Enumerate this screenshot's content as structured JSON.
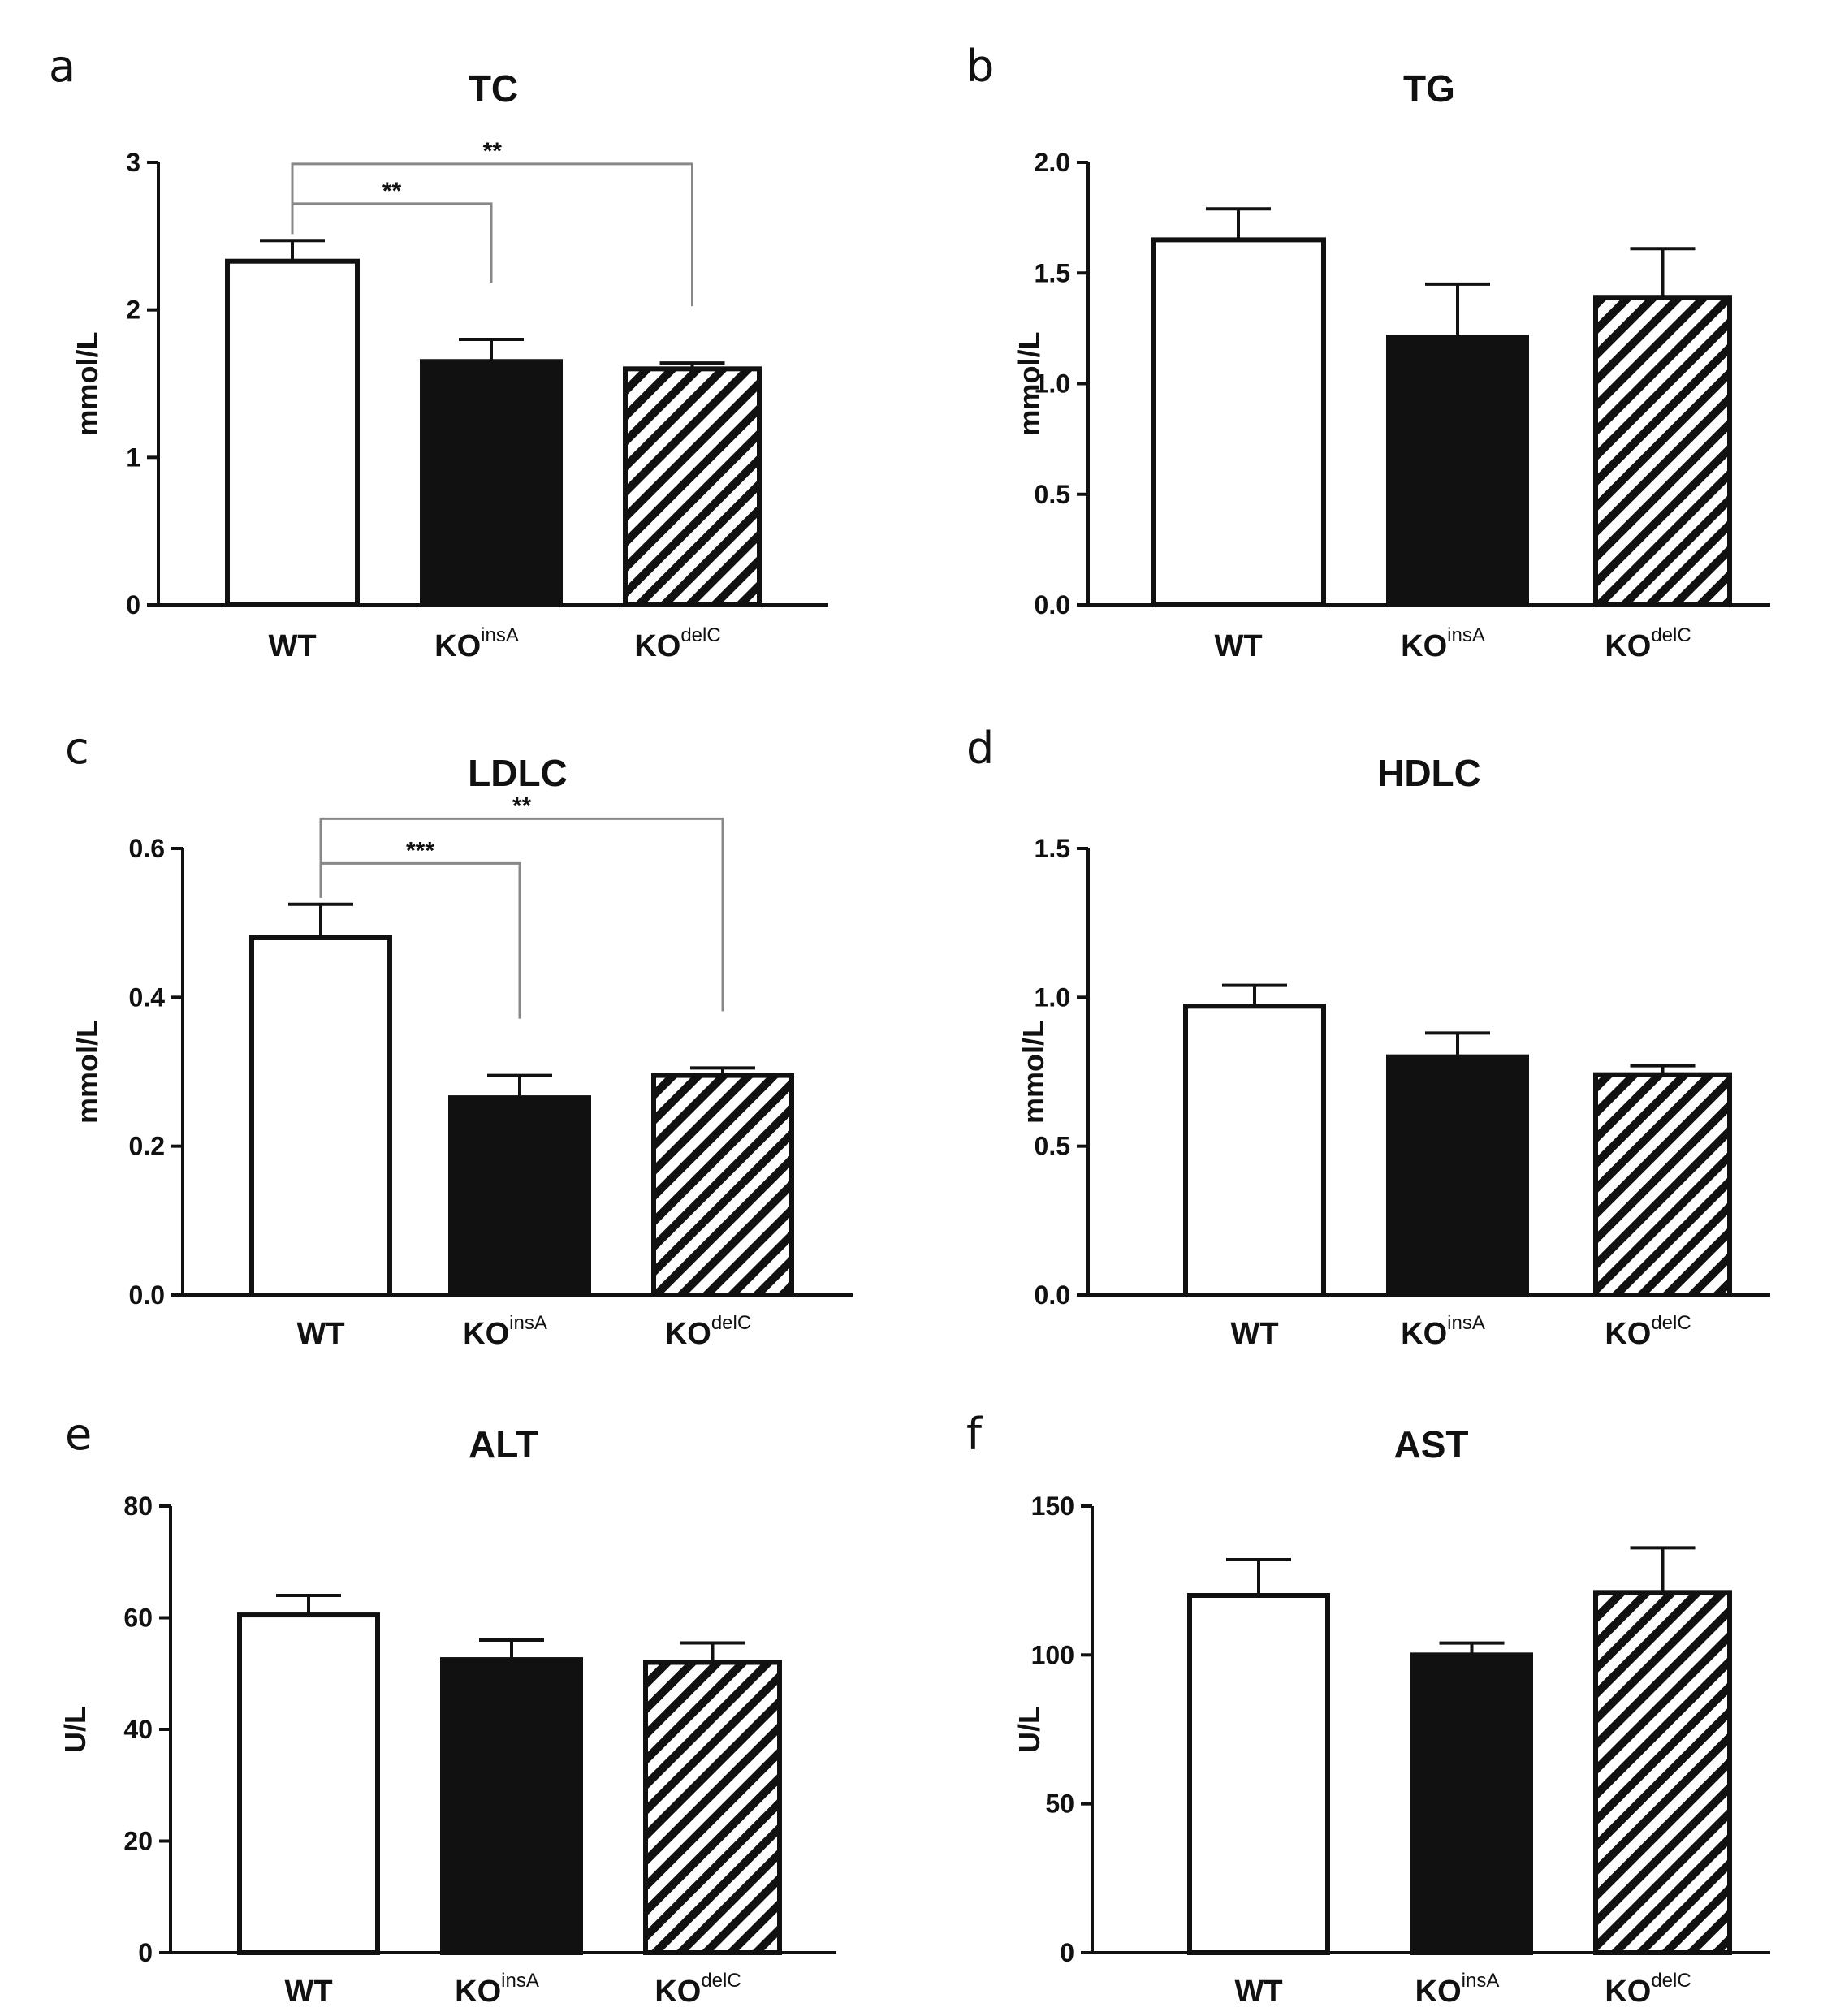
{
  "colors": {
    "ink": "#111111",
    "background": "#ffffff",
    "bracket": "#888888"
  },
  "chart_data": [
    {
      "panel": "a",
      "type": "bar",
      "title": "TC",
      "ylabel": "mmol/L",
      "ylim": [
        0,
        3
      ],
      "yticks": [
        "0",
        "1",
        "2",
        "3"
      ],
      "ytick_values": [
        0,
        1,
        2,
        3
      ],
      "categories": [
        {
          "base": "WT",
          "sup": ""
        },
        {
          "base": "KO",
          "sup": "insA"
        },
        {
          "base": "KO",
          "sup": "delC"
        }
      ],
      "fills": [
        "white",
        "black",
        "hatch"
      ],
      "values": [
        2.33,
        1.65,
        1.6
      ],
      "errors": [
        0.14,
        0.15,
        0.04
      ],
      "significance": [
        {
          "from": 0,
          "to": 1,
          "label": "**",
          "y": 2.72
        },
        {
          "from": 0,
          "to": 2,
          "label": "**",
          "y": 2.99
        }
      ]
    },
    {
      "panel": "b",
      "type": "bar",
      "title": "TG",
      "ylabel": "mmol/L",
      "ylim": [
        0,
        2
      ],
      "yticks": [
        "0.0",
        "0.5",
        "1.0",
        "1.5",
        "2.0"
      ],
      "ytick_values": [
        0,
        0.5,
        1,
        1.5,
        2
      ],
      "categories": [
        {
          "base": "WT",
          "sup": ""
        },
        {
          "base": "KO",
          "sup": "insA"
        },
        {
          "base": "KO",
          "sup": "delC"
        }
      ],
      "fills": [
        "white",
        "black",
        "hatch"
      ],
      "values": [
        1.65,
        1.21,
        1.39
      ],
      "errors": [
        0.14,
        0.24,
        0.22
      ],
      "significance": []
    },
    {
      "panel": "c",
      "type": "bar",
      "title": "LDLC",
      "ylabel": "mmol/L",
      "ylim": [
        0,
        0.6
      ],
      "yticks": [
        "0.0",
        "0.2",
        "0.4",
        "0.6"
      ],
      "ytick_values": [
        0,
        0.2,
        0.4,
        0.6
      ],
      "categories": [
        {
          "base": "WT",
          "sup": ""
        },
        {
          "base": "KO",
          "sup": "insA"
        },
        {
          "base": "KO",
          "sup": "delC"
        }
      ],
      "fills": [
        "white",
        "black",
        "hatch"
      ],
      "values": [
        0.48,
        0.265,
        0.295
      ],
      "errors": [
        0.045,
        0.03,
        0.01
      ],
      "significance": [
        {
          "from": 0,
          "to": 1,
          "label": "***",
          "y": 0.58
        },
        {
          "from": 0,
          "to": 2,
          "label": "**",
          "y": 0.64
        }
      ]
    },
    {
      "panel": "d",
      "type": "bar",
      "title": "HDLC",
      "ylabel": "mmol/L",
      "ylim": [
        0,
        1.5
      ],
      "yticks": [
        "0.0",
        "0.5",
        "1.0",
        "1.5"
      ],
      "ytick_values": [
        0,
        0.5,
        1,
        1.5
      ],
      "categories": [
        {
          "base": "WT",
          "sup": ""
        },
        {
          "base": "KO",
          "sup": "insA"
        },
        {
          "base": "KO",
          "sup": "delC"
        }
      ],
      "fills": [
        "white",
        "black",
        "hatch"
      ],
      "values": [
        0.97,
        0.8,
        0.74
      ],
      "errors": [
        0.07,
        0.08,
        0.03
      ],
      "significance": []
    },
    {
      "panel": "e",
      "type": "bar",
      "title": "ALT",
      "ylabel": "U/L",
      "ylim": [
        0,
        80
      ],
      "yticks": [
        "0",
        "20",
        "40",
        "60",
        "80"
      ],
      "ytick_values": [
        0,
        20,
        40,
        60,
        80
      ],
      "categories": [
        {
          "base": "WT",
          "sup": ""
        },
        {
          "base": "KO",
          "sup": "insA"
        },
        {
          "base": "KO",
          "sup": "delC"
        }
      ],
      "fills": [
        "white",
        "black",
        "hatch"
      ],
      "values": [
        60.5,
        52.5,
        52
      ],
      "errors": [
        3.5,
        3.5,
        3.5
      ],
      "significance": []
    },
    {
      "panel": "f",
      "type": "bar",
      "title": "AST",
      "ylabel": "U/L",
      "ylim": [
        0,
        150
      ],
      "yticks": [
        "0",
        "50",
        "100",
        "150"
      ],
      "ytick_values": [
        0,
        50,
        100,
        150
      ],
      "categories": [
        {
          "base": "WT",
          "sup": ""
        },
        {
          "base": "KO",
          "sup": "insA"
        },
        {
          "base": "KO",
          "sup": "delC"
        }
      ],
      "fills": [
        "white",
        "black",
        "hatch"
      ],
      "values": [
        120,
        100,
        121
      ],
      "errors": [
        12,
        4,
        15
      ],
      "significance": []
    }
  ]
}
